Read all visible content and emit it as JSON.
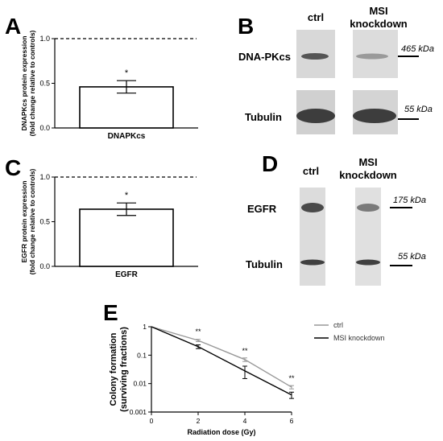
{
  "panels": {
    "a": {
      "letter": "A"
    },
    "b": {
      "letter": "B"
    },
    "c": {
      "letter": "C"
    },
    "d": {
      "letter": "D"
    },
    "e": {
      "letter": "E"
    }
  },
  "blot_b": {
    "lanes": [
      "ctrl",
      "MSI\nknockdown"
    ],
    "rows": [
      {
        "label": "DNA-PKcs",
        "marker": "465 kDa"
      },
      {
        "label": "Tubulin",
        "marker": "55 kDa"
      }
    ]
  },
  "blot_d": {
    "lanes": [
      "ctrl",
      "MSI\nknockdown"
    ],
    "rows": [
      {
        "label": "EGFR",
        "marker": "175 kDa"
      },
      {
        "label": "Tubulin",
        "marker": "55 kDa"
      }
    ]
  },
  "chart_data": [
    {
      "panel": "A",
      "type": "bar",
      "categories": [
        "DNAPKcs"
      ],
      "values": [
        0.46
      ],
      "errors": [
        0.07
      ],
      "significance": [
        "*"
      ],
      "reference_line": 1.0,
      "ylabel_lines": [
        "DNAPKcs protein expression",
        "(fold change relative to controls)"
      ],
      "ylim": [
        0,
        1.0
      ],
      "yticks": [
        "0.0",
        "0.5",
        "1.0"
      ]
    },
    {
      "panel": "C",
      "type": "bar",
      "categories": [
        "EGFR"
      ],
      "values": [
        0.64
      ],
      "errors": [
        0.07
      ],
      "significance": [
        "*"
      ],
      "reference_line": 1.0,
      "ylabel_lines": [
        "EGFR protein expression",
        "(fold change relative to controls)"
      ],
      "ylim": [
        0,
        1.0
      ],
      "yticks": [
        "0.0",
        "0.5",
        "1.0"
      ]
    },
    {
      "panel": "E",
      "type": "line",
      "xlabel": "Radiation dose (Gy)",
      "ylabel_lines": [
        "Colony formation",
        "(surviving fractions)"
      ],
      "yscale": "log",
      "xlim": [
        0,
        6
      ],
      "ylim": [
        0.001,
        1
      ],
      "xticks": [
        "0",
        "2",
        "4",
        "6"
      ],
      "yticks": [
        "0.001",
        "0.01",
        "0.1",
        "1"
      ],
      "x": [
        0,
        2,
        4,
        6
      ],
      "series": [
        {
          "name": "ctrl",
          "color": "#999999",
          "values": [
            1,
            0.33,
            0.07,
            0.0075
          ],
          "errors": [
            0,
            0.03,
            0.01,
            0.001
          ]
        },
        {
          "name": "MSI knockdown",
          "color": "#000000",
          "values": [
            1,
            0.2,
            0.028,
            0.004
          ],
          "errors": [
            0,
            0.03,
            0.013,
            0.001
          ]
        }
      ],
      "significance": [
        {
          "x": 2,
          "label": "**"
        },
        {
          "x": 4,
          "label": "**"
        },
        {
          "x": 6,
          "label": "**"
        }
      ],
      "legend_position": "top-right"
    }
  ]
}
